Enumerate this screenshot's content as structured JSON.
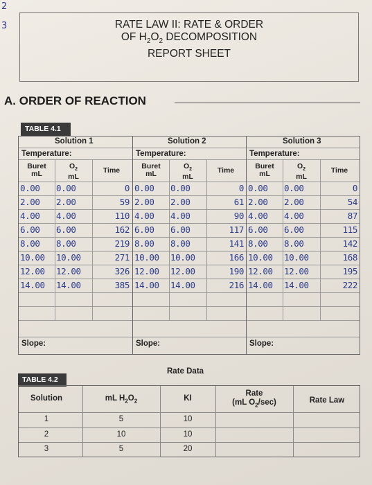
{
  "margin_notes": [
    "2",
    "3"
  ],
  "title": {
    "line1": "RATE LAW II: RATE & ORDER",
    "line2_a": "OF H",
    "line2_sub1": "2",
    "line2_b": "O",
    "line2_sub2": "2",
    "line2_c": " DECOMPOSITION",
    "line3": "REPORT SHEET"
  },
  "section_a": "A. ORDER OF REACTION",
  "table41": {
    "label": "TABLE 4.1",
    "temperature_label": "Temperature:",
    "slope_label": "Slope:",
    "col_buret": "Buret",
    "col_o2": "O",
    "col_o2_sub": "2",
    "col_ml": "mL",
    "col_time": "Time",
    "solutions": [
      {
        "name": "Solution 1",
        "rows": [
          [
            "0.00",
            "0.00",
            "0"
          ],
          [
            "2.00",
            "2.00",
            "59"
          ],
          [
            "4.00",
            "4.00",
            "110"
          ],
          [
            "6.00",
            "6.00",
            "162"
          ],
          [
            "8.00",
            "8.00",
            "219"
          ],
          [
            "10.00",
            "10.00",
            "271"
          ],
          [
            "12.00",
            "12.00",
            "326"
          ],
          [
            "14.00",
            "14.00",
            "385"
          ]
        ]
      },
      {
        "name": "Solution 2",
        "rows": [
          [
            "0.00",
            "0.00",
            "0"
          ],
          [
            "2.00",
            "2.00",
            "61"
          ],
          [
            "4.00",
            "4.00",
            "90"
          ],
          [
            "6.00",
            "6.00",
            "117"
          ],
          [
            "8.00",
            "8.00",
            "141"
          ],
          [
            "10.00",
            "10.00",
            "166"
          ],
          [
            "12.00",
            "12.00",
            "190"
          ],
          [
            "14.00",
            "14.00",
            "216"
          ]
        ]
      },
      {
        "name": "Solution 3",
        "rows": [
          [
            "0.00",
            "0.00",
            "0"
          ],
          [
            "2.00",
            "2.00",
            "54"
          ],
          [
            "4.00",
            "4.00",
            "87"
          ],
          [
            "6.00",
            "6.00",
            "115"
          ],
          [
            "8.00",
            "8.00",
            "142"
          ],
          [
            "10.00",
            "10.00",
            "168"
          ],
          [
            "12.00",
            "12.00",
            "195"
          ],
          [
            "14.00",
            "14.00",
            "222"
          ]
        ]
      }
    ]
  },
  "table42": {
    "label": "TABLE 4.2",
    "caption": "Rate Data",
    "headers": {
      "solution": "Solution",
      "ml_a": "mL H",
      "ml_sub1": "2",
      "ml_b": "O",
      "ml_sub2": "2",
      "ki": "KI",
      "rate_line1": "Rate",
      "rate_line2_a": "(mL O",
      "rate_line2_sub": "2",
      "rate_line2_b": "/sec)",
      "rate_law": "Rate Law"
    },
    "rows": [
      {
        "solution": "1",
        "ml": "5",
        "ki": "10"
      },
      {
        "solution": "2",
        "ml": "10",
        "ki": "10"
      },
      {
        "solution": "3",
        "ml": "5",
        "ki": "20"
      }
    ]
  }
}
